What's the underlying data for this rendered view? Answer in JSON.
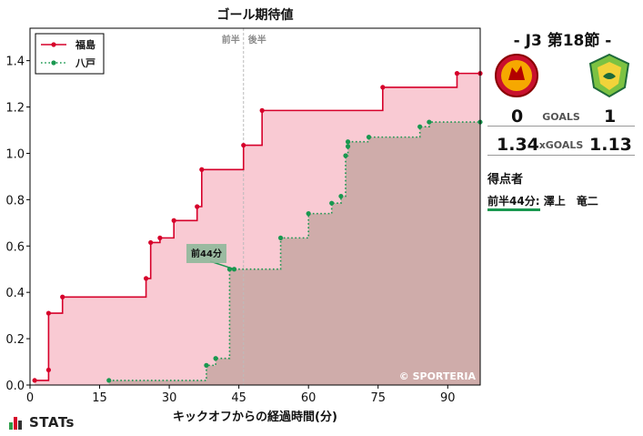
{
  "chart_data": {
    "type": "line",
    "title": "ゴール期待値",
    "xlabel": "キックオフからの経過時間(分)",
    "ylabel": "",
    "xlim": [
      0,
      97
    ],
    "ylim": [
      0,
      1.54
    ],
    "x_ticks": [
      0,
      15,
      30,
      45,
      60,
      75,
      90
    ],
    "y_ticks": [
      0.0,
      0.2,
      0.4,
      0.6,
      0.8,
      1.0,
      1.2,
      1.4
    ],
    "halftime_minute": 46,
    "halftime_labels": {
      "first": "前半",
      "second": "後半"
    },
    "legend_position": "top-left",
    "watermark": "© SPORTERIA",
    "series": [
      {
        "name": "福島",
        "color": "#d6002a",
        "fill": "rgba(241,128,150,0.42)",
        "line_style": "solid",
        "points": [
          [
            1,
            0.02
          ],
          [
            4,
            0.065
          ],
          [
            4,
            0.31
          ],
          [
            7,
            0.38
          ],
          [
            25,
            0.46
          ],
          [
            26,
            0.615
          ],
          [
            28,
            0.635
          ],
          [
            31,
            0.71
          ],
          [
            36,
            0.77
          ],
          [
            37,
            0.93
          ],
          [
            46,
            1.035
          ],
          [
            50,
            1.185
          ],
          [
            76,
            1.285
          ],
          [
            92,
            1.345
          ],
          [
            97,
            1.345
          ]
        ]
      },
      {
        "name": "八戸",
        "color": "#1a9850",
        "fill": "rgba(160,140,125,0.48)",
        "line_style": "dotted",
        "points": [
          [
            17,
            0.02
          ],
          [
            38,
            0.085
          ],
          [
            40,
            0.115
          ],
          [
            43,
            0.5
          ],
          [
            44,
            0.5
          ],
          [
            54,
            0.635
          ],
          [
            60,
            0.74
          ],
          [
            65,
            0.785
          ],
          [
            67,
            0.815
          ],
          [
            68,
            0.99
          ],
          [
            68.5,
            1.03
          ],
          [
            68.5,
            1.05
          ],
          [
            73,
            1.07
          ],
          [
            84,
            1.115
          ],
          [
            86,
            1.135
          ],
          [
            97,
            1.135
          ]
        ]
      }
    ],
    "annotations": [
      {
        "label": "前44分",
        "x": 44,
        "y": 0.5,
        "series": "八戸"
      }
    ]
  },
  "match": {
    "title": "- J3 第18節 -",
    "home_crest_icon": "fukushima-crest-icon",
    "away_crest_icon": "hachinohe-crest-icon",
    "home_goals": "0",
    "away_goals": "1",
    "goals_label": "GOALS",
    "home_xg": "1.34",
    "away_xg": "1.13",
    "xg_label": "xGOALS"
  },
  "scorers": {
    "title": "得点者",
    "items": [
      {
        "time": "前半44分:",
        "name": "澤上　竜二"
      }
    ]
  },
  "brand": {
    "name": "STATs"
  }
}
